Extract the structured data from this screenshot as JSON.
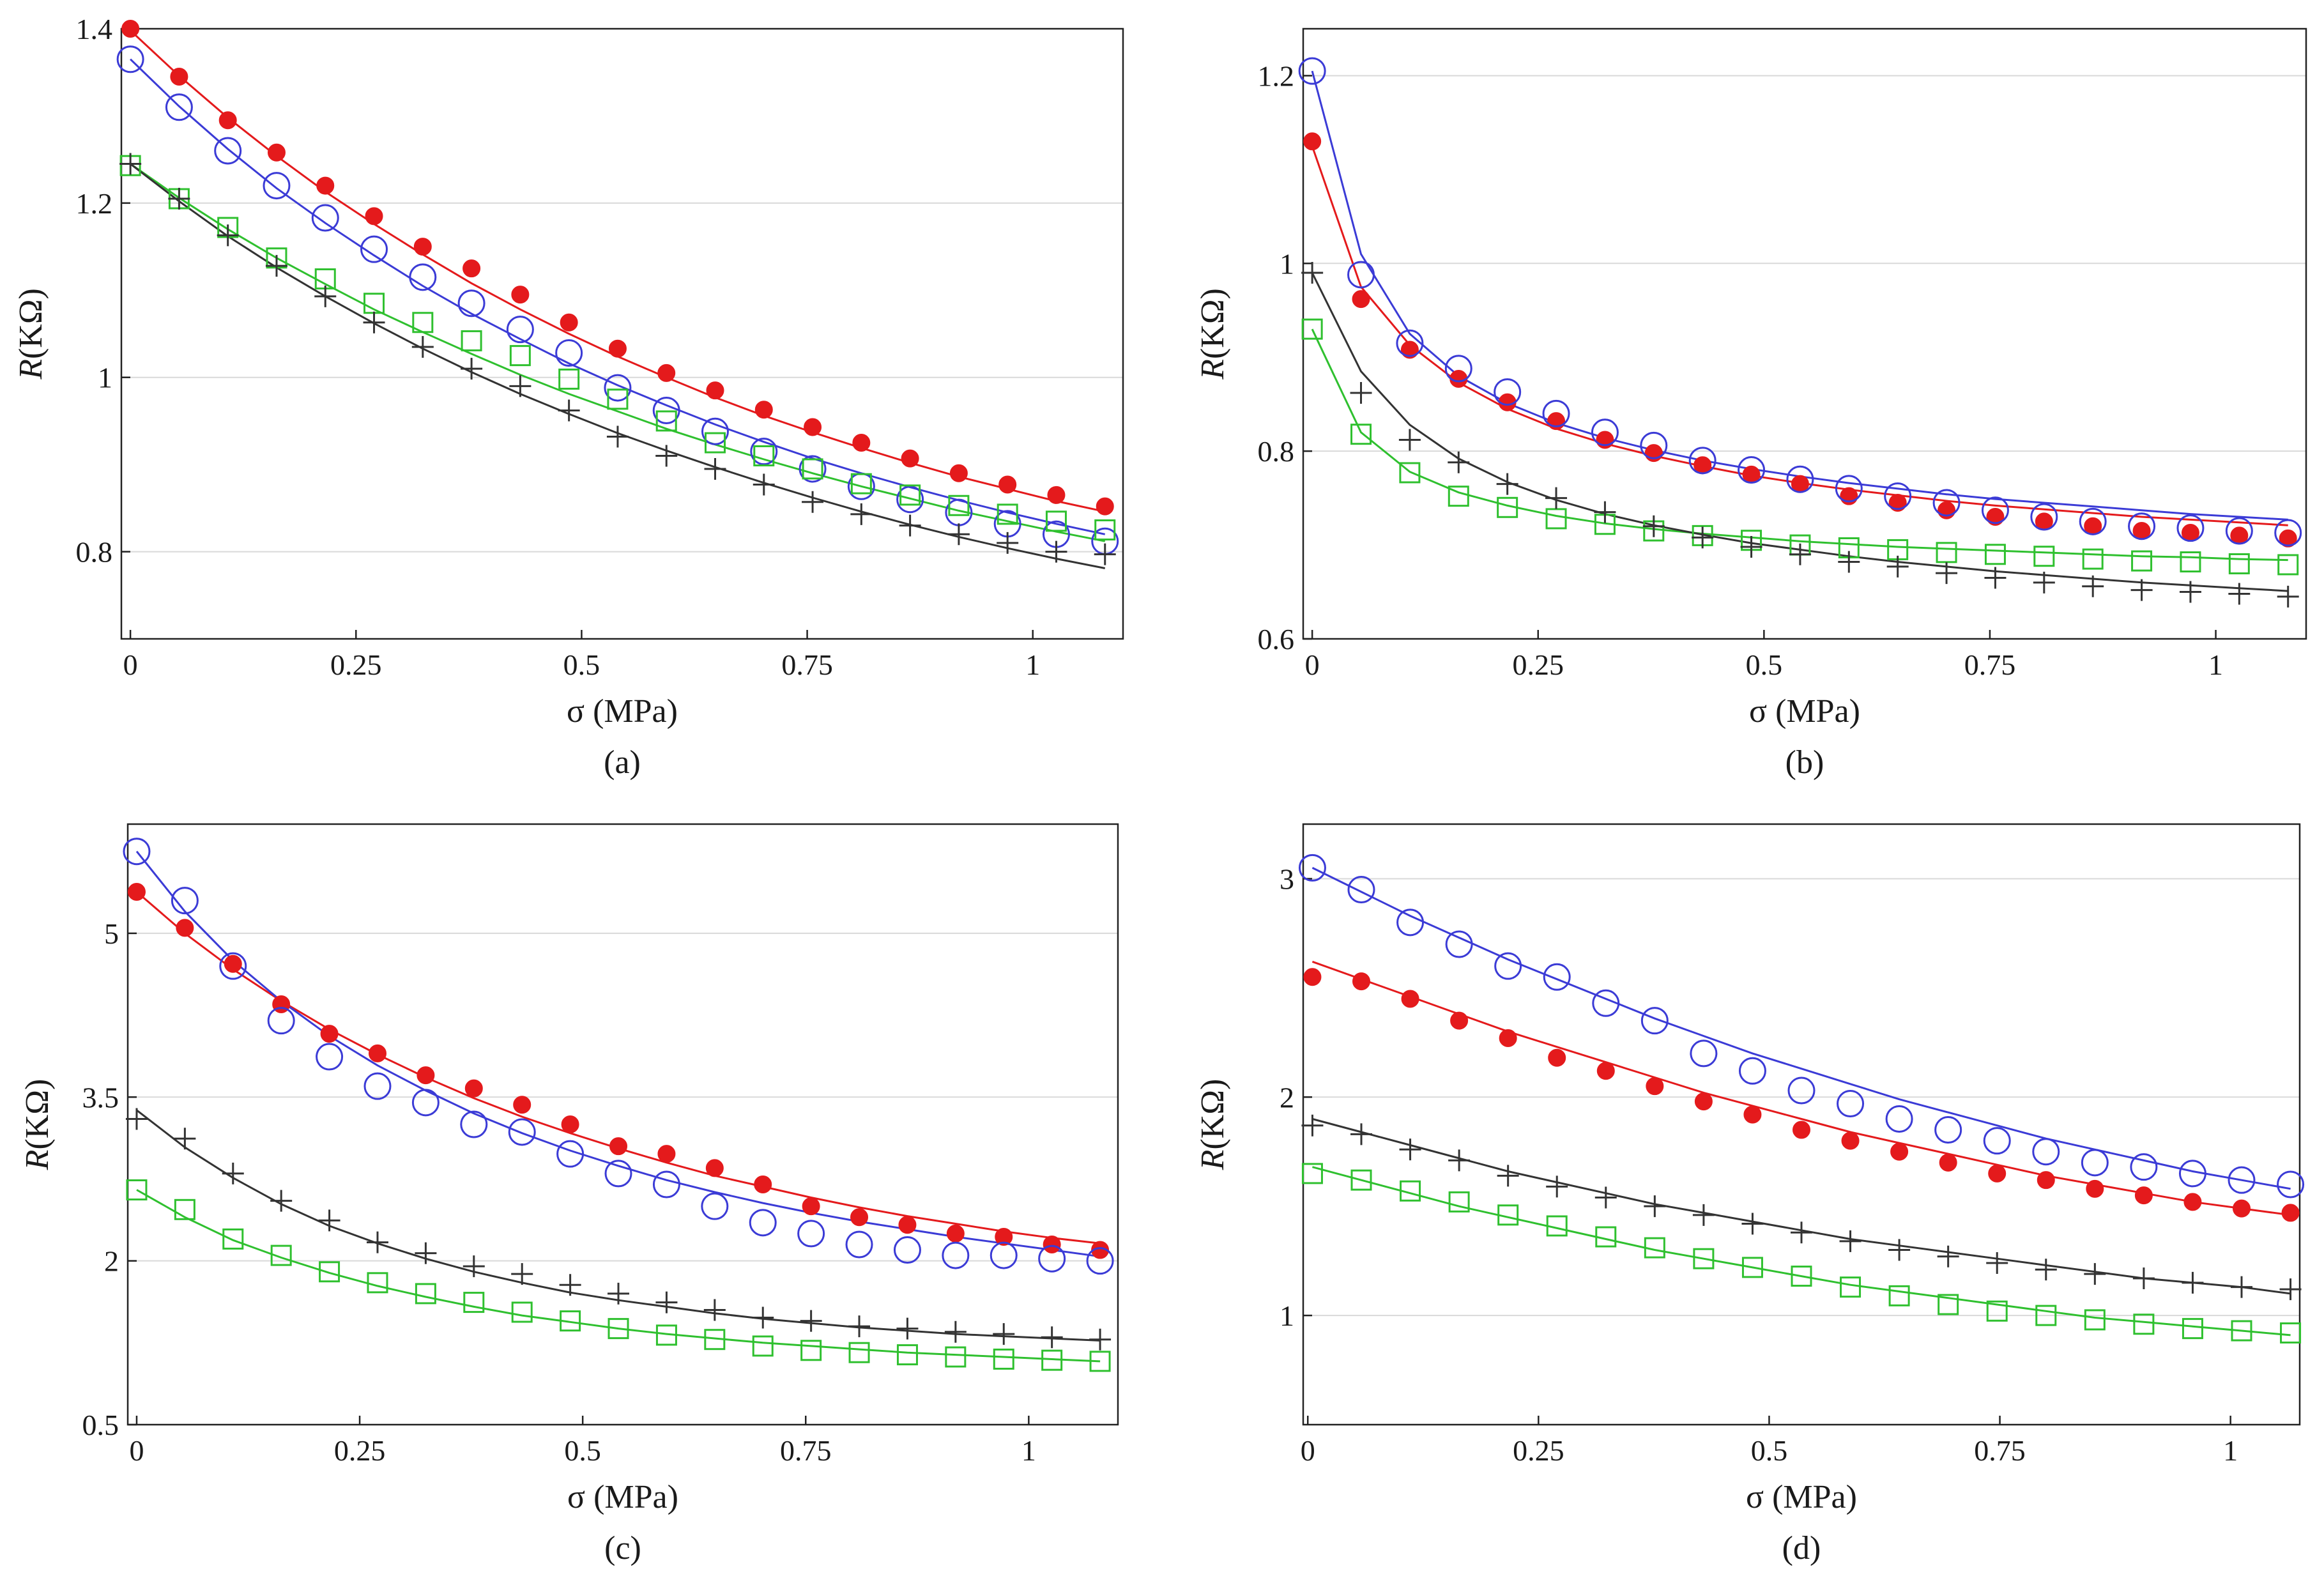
{
  "figure": {
    "panel_count": 4,
    "series_styles": [
      {
        "key": "red",
        "marker": "filled-circle",
        "color": "#e41a1c"
      },
      {
        "key": "blue",
        "marker": "open-circle",
        "color": "#3b3bd6"
      },
      {
        "key": "green",
        "marker": "open-square",
        "color": "#2fc02f"
      },
      {
        "key": "black",
        "marker": "plus",
        "color": "#333333"
      }
    ]
  },
  "chart_data": [
    {
      "type": "line",
      "caption": "(a)",
      "xlabel": "σ (MPa)",
      "ylabel_italic": "R",
      "ylabel_unit": "(KΩ)",
      "xlim": [
        -0.01,
        1.1
      ],
      "ylim": [
        0.7,
        1.4
      ],
      "xticks": [
        0,
        0.25,
        0.5,
        0.75,
        1
      ],
      "xtick_labels": [
        "0",
        "0.25",
        "0.5",
        "0.75",
        "1"
      ],
      "yticks": [
        0.8,
        1.0,
        1.2,
        1.4
      ],
      "ytick_labels": [
        "0.8",
        "1",
        "1.2",
        "1.4"
      ],
      "x": [
        0,
        0.054,
        0.108,
        0.162,
        0.216,
        0.27,
        0.324,
        0.378,
        0.432,
        0.486,
        0.54,
        0.594,
        0.648,
        0.702,
        0.756,
        0.81,
        0.864,
        0.918,
        0.972,
        1.026,
        1.08
      ],
      "series": [
        {
          "name": "red",
          "values": [
            1.4,
            1.345,
            1.295,
            1.258,
            1.22,
            1.185,
            1.15,
            1.125,
            1.095,
            1.063,
            1.033,
            1.005,
            0.985,
            0.963,
            0.943,
            0.925,
            0.907,
            0.89,
            0.877,
            0.865,
            0.852
          ],
          "fit": [
            1.398,
            1.346,
            1.298,
            1.254,
            1.213,
            1.176,
            1.141,
            1.108,
            1.078,
            1.05,
            1.024,
            1.0,
            0.977,
            0.956,
            0.937,
            0.919,
            0.902,
            0.886,
            0.872,
            0.858,
            0.846
          ]
        },
        {
          "name": "blue",
          "values": [
            1.365,
            1.31,
            1.26,
            1.22,
            1.183,
            1.147,
            1.115,
            1.085,
            1.055,
            1.028,
            0.988,
            0.962,
            0.938,
            0.915,
            0.895,
            0.875,
            0.86,
            0.845,
            0.832,
            0.82,
            0.812
          ],
          "fit": [
            1.365,
            1.311,
            1.262,
            1.217,
            1.177,
            1.14,
            1.105,
            1.073,
            1.044,
            1.016,
            0.991,
            0.968,
            0.946,
            0.926,
            0.907,
            0.89,
            0.874,
            0.859,
            0.845,
            0.832,
            0.82
          ]
        },
        {
          "name": "green",
          "values": [
            1.243,
            1.205,
            1.172,
            1.137,
            1.113,
            1.085,
            1.063,
            1.042,
            1.025,
            0.998,
            0.975,
            0.95,
            0.925,
            0.91,
            0.895,
            0.878,
            0.865,
            0.853,
            0.843,
            0.835,
            0.825
          ],
          "fit": [
            1.245,
            1.206,
            1.17,
            1.137,
            1.107,
            1.078,
            1.052,
            1.027,
            1.003,
            0.981,
            0.961,
            0.941,
            0.923,
            0.906,
            0.89,
            0.875,
            0.861,
            0.847,
            0.835,
            0.823,
            0.812
          ]
        },
        {
          "name": "black",
          "values": [
            1.245,
            1.205,
            1.163,
            1.128,
            1.093,
            1.063,
            1.035,
            1.01,
            0.99,
            0.962,
            0.932,
            0.91,
            0.895,
            0.877,
            0.857,
            0.843,
            0.83,
            0.82,
            0.81,
            0.8,
            0.797
          ],
          "fit": [
            1.245,
            1.202,
            1.162,
            1.126,
            1.093,
            1.062,
            1.033,
            1.006,
            0.981,
            0.958,
            0.936,
            0.916,
            0.897,
            0.879,
            0.862,
            0.846,
            0.831,
            0.817,
            0.804,
            0.792,
            0.781
          ]
        }
      ]
    },
    {
      "type": "line",
      "caption": "(b)",
      "xlabel": "σ (MPa)",
      "ylabel_italic": "R",
      "ylabel_unit": "(KΩ)",
      "xlim": [
        -0.01,
        1.1
      ],
      "ylim": [
        0.6,
        1.25
      ],
      "xticks": [
        0,
        0.25,
        0.5,
        0.75,
        1
      ],
      "xtick_labels": [
        "0",
        "0.25",
        "0.5",
        "0.75",
        "1"
      ],
      "yticks": [
        0.6,
        0.8,
        1.0,
        1.2
      ],
      "ytick_labels": [
        "0.6",
        "0.8",
        "1",
        "1.2"
      ],
      "x": [
        0,
        0.054,
        0.108,
        0.162,
        0.216,
        0.27,
        0.324,
        0.378,
        0.432,
        0.486,
        0.54,
        0.594,
        0.648,
        0.702,
        0.756,
        0.81,
        0.864,
        0.918,
        0.972,
        1.026,
        1.08
      ],
      "series": [
        {
          "name": "red",
          "values": [
            1.13,
            0.962,
            0.908,
            0.877,
            0.852,
            0.832,
            0.812,
            0.798,
            0.785,
            0.775,
            0.765,
            0.752,
            0.745,
            0.737,
            0.73,
            0.725,
            0.72,
            0.715,
            0.713,
            0.71,
            0.707
          ],
          "fit": [
            1.125,
            0.975,
            0.913,
            0.873,
            0.845,
            0.824,
            0.808,
            0.795,
            0.784,
            0.774,
            0.766,
            0.759,
            0.753,
            0.747,
            0.742,
            0.738,
            0.734,
            0.73,
            0.727,
            0.724,
            0.721
          ]
        },
        {
          "name": "blue",
          "values": [
            1.205,
            0.988,
            0.915,
            0.888,
            0.863,
            0.84,
            0.82,
            0.806,
            0.79,
            0.78,
            0.77,
            0.76,
            0.752,
            0.745,
            0.737,
            0.73,
            0.725,
            0.72,
            0.718,
            0.715,
            0.713
          ],
          "fit": [
            1.205,
            1.01,
            0.925,
            0.88,
            0.851,
            0.83,
            0.814,
            0.801,
            0.79,
            0.781,
            0.773,
            0.766,
            0.76,
            0.754,
            0.749,
            0.745,
            0.741,
            0.737,
            0.733,
            0.73,
            0.727
          ]
        },
        {
          "name": "green",
          "values": [
            0.93,
            0.818,
            0.777,
            0.752,
            0.74,
            0.728,
            0.722,
            0.715,
            0.71,
            0.705,
            0.7,
            0.697,
            0.695,
            0.692,
            0.69,
            0.688,
            0.685,
            0.683,
            0.682,
            0.68,
            0.679
          ],
          "fit": [
            0.93,
            0.82,
            0.778,
            0.756,
            0.742,
            0.731,
            0.723,
            0.717,
            0.712,
            0.708,
            0.704,
            0.701,
            0.698,
            0.696,
            0.694,
            0.692,
            0.69,
            0.688,
            0.687,
            0.685,
            0.684
          ]
        },
        {
          "name": "black",
          "values": [
            0.99,
            0.862,
            0.812,
            0.788,
            0.765,
            0.75,
            0.735,
            0.72,
            0.708,
            0.698,
            0.69,
            0.682,
            0.677,
            0.67,
            0.665,
            0.66,
            0.656,
            0.652,
            0.65,
            0.648,
            0.645
          ],
          "fit": [
            0.99,
            0.885,
            0.828,
            0.792,
            0.767,
            0.748,
            0.733,
            0.721,
            0.711,
            0.702,
            0.695,
            0.688,
            0.682,
            0.677,
            0.672,
            0.668,
            0.664,
            0.66,
            0.657,
            0.654,
            0.651
          ]
        }
      ]
    },
    {
      "type": "line",
      "caption": "(c)",
      "xlabel": "σ (MPa)",
      "ylabel_italic": "R",
      "ylabel_unit": "(KΩ)",
      "xlim": [
        -0.01,
        1.1
      ],
      "ylim": [
        0.5,
        6.0
      ],
      "xticks": [
        0,
        0.25,
        0.5,
        0.75,
        1
      ],
      "xtick_labels": [
        "0",
        "0.25",
        "0.5",
        "0.75",
        "1"
      ],
      "yticks": [
        0.5,
        2,
        3.5,
        5
      ],
      "ytick_labels": [
        "0.5",
        "2",
        "3.5",
        "5"
      ],
      "x": [
        0,
        0.054,
        0.108,
        0.162,
        0.216,
        0.27,
        0.324,
        0.378,
        0.432,
        0.486,
        0.54,
        0.594,
        0.648,
        0.702,
        0.756,
        0.81,
        0.864,
        0.918,
        0.972,
        1.026,
        1.08
      ],
      "series": [
        {
          "name": "red",
          "values": [
            5.38,
            5.05,
            4.72,
            4.35,
            4.08,
            3.9,
            3.7,
            3.58,
            3.43,
            3.25,
            3.05,
            2.98,
            2.85,
            2.7,
            2.5,
            2.4,
            2.33,
            2.25,
            2.22,
            2.15,
            2.1
          ],
          "fit": [
            5.38,
            5.0,
            4.67,
            4.38,
            4.12,
            3.89,
            3.68,
            3.49,
            3.32,
            3.17,
            3.03,
            2.9,
            2.78,
            2.68,
            2.58,
            2.49,
            2.41,
            2.34,
            2.27,
            2.21,
            2.16
          ]
        },
        {
          "name": "blue",
          "values": [
            5.75,
            5.3,
            4.7,
            4.2,
            3.87,
            3.6,
            3.45,
            3.25,
            3.18,
            2.98,
            2.8,
            2.7,
            2.5,
            2.35,
            2.25,
            2.15,
            2.1,
            2.05,
            2.05,
            2.02,
            2.0
          ],
          "fit": [
            5.75,
            5.2,
            4.75,
            4.38,
            4.06,
            3.79,
            3.56,
            3.35,
            3.17,
            3.01,
            2.87,
            2.74,
            2.63,
            2.53,
            2.44,
            2.36,
            2.29,
            2.22,
            2.16,
            2.1,
            2.04
          ]
        },
        {
          "name": "green",
          "values": [
            2.65,
            2.47,
            2.2,
            2.05,
            1.9,
            1.8,
            1.7,
            1.62,
            1.53,
            1.45,
            1.38,
            1.32,
            1.28,
            1.22,
            1.18,
            1.16,
            1.14,
            1.12,
            1.1,
            1.09,
            1.08
          ],
          "fit": [
            2.65,
            2.4,
            2.19,
            2.03,
            1.89,
            1.77,
            1.67,
            1.58,
            1.5,
            1.44,
            1.38,
            1.33,
            1.29,
            1.25,
            1.22,
            1.19,
            1.16,
            1.14,
            1.12,
            1.1,
            1.08
          ]
        },
        {
          "name": "black",
          "values": [
            3.3,
            3.12,
            2.8,
            2.55,
            2.37,
            2.17,
            2.07,
            1.95,
            1.88,
            1.78,
            1.7,
            1.62,
            1.55,
            1.48,
            1.45,
            1.4,
            1.38,
            1.35,
            1.33,
            1.3,
            1.28
          ],
          "fit": [
            3.38,
            3.04,
            2.76,
            2.52,
            2.32,
            2.16,
            2.02,
            1.9,
            1.8,
            1.71,
            1.64,
            1.58,
            1.52,
            1.47,
            1.43,
            1.39,
            1.36,
            1.33,
            1.31,
            1.29,
            1.27
          ]
        }
      ]
    },
    {
      "type": "line",
      "caption": "(d)",
      "xlabel": "σ (MPa)",
      "ylabel_italic": "R",
      "ylabel_unit": "(KΩ)",
      "xlim": [
        -0.005,
        1.075
      ],
      "ylim": [
        0.5,
        3.25
      ],
      "xticks": [
        0,
        0.25,
        0.5,
        0.75,
        1
      ],
      "xtick_labels": [
        "0",
        "0.25",
        "0.5",
        "0.75",
        "1"
      ],
      "yticks": [
        1,
        2,
        3
      ],
      "ytick_labels": [
        "1",
        "2",
        "3"
      ],
      "x": [
        0.005,
        0.058,
        0.111,
        0.164,
        0.217,
        0.27,
        0.323,
        0.376,
        0.429,
        0.482,
        0.535,
        0.588,
        0.641,
        0.694,
        0.747,
        0.8,
        0.853,
        0.906,
        0.959,
        1.012,
        1.065
      ],
      "series": [
        {
          "name": "red",
          "values": [
            2.55,
            2.53,
            2.45,
            2.35,
            2.27,
            2.18,
            2.12,
            2.05,
            1.98,
            1.92,
            1.85,
            1.8,
            1.75,
            1.7,
            1.65,
            1.62,
            1.58,
            1.55,
            1.52,
            1.49,
            1.47
          ],
          "fit": [
            2.62,
            2.54,
            2.46,
            2.38,
            2.3,
            2.23,
            2.16,
            2.09,
            2.02,
            1.96,
            1.9,
            1.84,
            1.79,
            1.74,
            1.69,
            1.64,
            1.6,
            1.56,
            1.52,
            1.49,
            1.46
          ]
        },
        {
          "name": "blue",
          "values": [
            3.05,
            2.95,
            2.8,
            2.7,
            2.6,
            2.55,
            2.43,
            2.35,
            2.2,
            2.12,
            2.03,
            1.97,
            1.9,
            1.85,
            1.8,
            1.75,
            1.7,
            1.68,
            1.65,
            1.62,
            1.6
          ],
          "fit": [
            3.05,
            2.94,
            2.83,
            2.73,
            2.63,
            2.54,
            2.45,
            2.36,
            2.28,
            2.2,
            2.13,
            2.06,
            1.99,
            1.93,
            1.87,
            1.81,
            1.76,
            1.71,
            1.66,
            1.62,
            1.58
          ]
        },
        {
          "name": "green",
          "values": [
            1.65,
            1.62,
            1.57,
            1.52,
            1.46,
            1.41,
            1.36,
            1.31,
            1.26,
            1.22,
            1.18,
            1.13,
            1.09,
            1.05,
            1.02,
            1.0,
            0.98,
            0.96,
            0.94,
            0.93,
            0.92
          ],
          "fit": [
            1.68,
            1.62,
            1.56,
            1.5,
            1.45,
            1.4,
            1.35,
            1.3,
            1.26,
            1.22,
            1.18,
            1.14,
            1.11,
            1.08,
            1.05,
            1.02,
            0.99,
            0.97,
            0.95,
            0.93,
            0.91
          ]
        },
        {
          "name": "black",
          "values": [
            1.87,
            1.83,
            1.76,
            1.71,
            1.64,
            1.59,
            1.54,
            1.5,
            1.46,
            1.42,
            1.38,
            1.34,
            1.3,
            1.27,
            1.24,
            1.21,
            1.19,
            1.17,
            1.15,
            1.13,
            1.12
          ],
          "fit": [
            1.9,
            1.84,
            1.78,
            1.72,
            1.66,
            1.61,
            1.56,
            1.51,
            1.47,
            1.43,
            1.39,
            1.35,
            1.32,
            1.29,
            1.26,
            1.23,
            1.2,
            1.17,
            1.15,
            1.13,
            1.1
          ]
        }
      ]
    }
  ]
}
